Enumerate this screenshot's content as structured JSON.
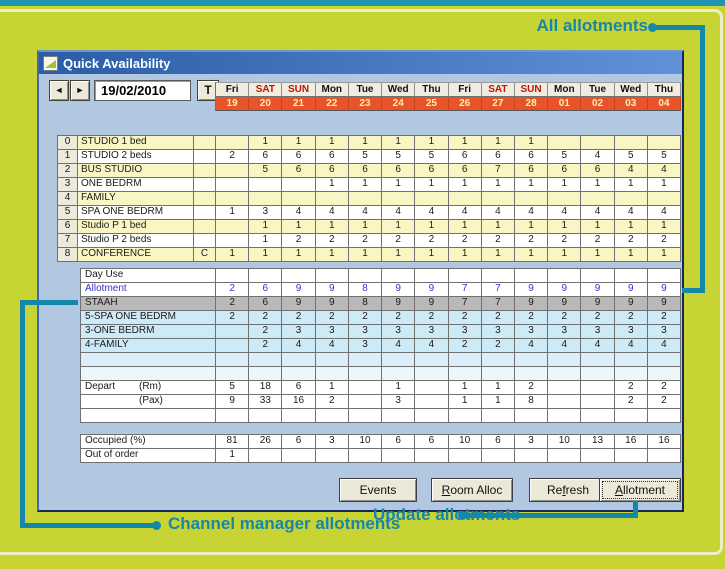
{
  "app": {
    "title": "Quick Availability"
  },
  "nav": {
    "prev_icon": "◄",
    "next_icon": "►",
    "date_value": "19/02/2010",
    "today_button": "T"
  },
  "columns": [
    {
      "day": "Fri",
      "date": "19",
      "weekend": false
    },
    {
      "day": "SAT",
      "date": "20",
      "weekend": true
    },
    {
      "day": "SUN",
      "date": "21",
      "weekend": true
    },
    {
      "day": "Mon",
      "date": "22",
      "weekend": false
    },
    {
      "day": "Tue",
      "date": "23",
      "weekend": false
    },
    {
      "day": "Wed",
      "date": "24",
      "weekend": false
    },
    {
      "day": "Thu",
      "date": "25",
      "weekend": false
    },
    {
      "day": "Fri",
      "date": "26",
      "weekend": false
    },
    {
      "day": "SAT",
      "date": "27",
      "weekend": true
    },
    {
      "day": "SUN",
      "date": "28",
      "weekend": true
    },
    {
      "day": "Mon",
      "date": "01",
      "weekend": false
    },
    {
      "day": "Tue",
      "date": "02",
      "weekend": false
    },
    {
      "day": "Wed",
      "date": "03",
      "weekend": false
    },
    {
      "day": "Thu",
      "date": "04",
      "weekend": false
    }
  ],
  "room_table": {
    "rows": [
      {
        "idx": "0",
        "name": "STUDIO 1 bed",
        "flag": "",
        "values": [
          "",
          "1",
          "1",
          "1",
          "1",
          "1",
          "1",
          "1",
          "1",
          "1",
          "",
          "",
          "",
          ""
        ]
      },
      {
        "idx": "1",
        "name": "STUDIO 2 beds",
        "flag": "",
        "values": [
          "2",
          "6",
          "6",
          "6",
          "5",
          "5",
          "5",
          "6",
          "6",
          "6",
          "5",
          "4",
          "5",
          "5"
        ]
      },
      {
        "idx": "2",
        "name": "BUS STUDIO",
        "flag": "",
        "values": [
          "",
          "5",
          "6",
          "6",
          "6",
          "6",
          "6",
          "6",
          "7",
          "6",
          "6",
          "6",
          "4",
          "4"
        ]
      },
      {
        "idx": "3",
        "name": "ONE BEDRM",
        "flag": "",
        "values": [
          "",
          "",
          "",
          "1",
          "1",
          "1",
          "1",
          "1",
          "1",
          "1",
          "1",
          "1",
          "1",
          "1"
        ]
      },
      {
        "idx": "4",
        "name": "FAMILY",
        "flag": "",
        "values": [
          "",
          "",
          "",
          "",
          "",
          "",
          "",
          "",
          "",
          "",
          "",
          "",
          "",
          ""
        ]
      },
      {
        "idx": "5",
        "name": "SPA ONE BEDRM",
        "flag": "",
        "values": [
          "1",
          "3",
          "4",
          "4",
          "4",
          "4",
          "4",
          "4",
          "4",
          "4",
          "4",
          "4",
          "4",
          "4"
        ]
      },
      {
        "idx": "6",
        "name": "Studio P 1 bed",
        "flag": "",
        "values": [
          "",
          "1",
          "1",
          "1",
          "1",
          "1",
          "1",
          "1",
          "1",
          "1",
          "1",
          "1",
          "1",
          "1"
        ]
      },
      {
        "idx": "7",
        "name": "Studio P 2 beds",
        "flag": "",
        "values": [
          "",
          "1",
          "2",
          "2",
          "2",
          "2",
          "2",
          "2",
          "2",
          "2",
          "2",
          "2",
          "2",
          "2"
        ]
      },
      {
        "idx": "8",
        "name": "CONFERENCE",
        "flag": "C",
        "values": [
          "1",
          "1",
          "1",
          "1",
          "1",
          "1",
          "1",
          "1",
          "1",
          "1",
          "1",
          "1",
          "1",
          "1"
        ]
      }
    ]
  },
  "allotment_table": {
    "rows": [
      {
        "label": "Day Use",
        "label2": "",
        "style": "white",
        "cls": "",
        "selectable": false,
        "values": [
          "",
          "",
          "",
          "",
          "",
          "",
          "",
          "",
          "",
          "",
          "",
          "",
          "",
          ""
        ]
      },
      {
        "label": "Allotment",
        "label2": "",
        "style": "white",
        "cls": "allot",
        "selectable": true,
        "values": [
          "2",
          "6",
          "9",
          "9",
          "8",
          "9",
          "9",
          "7",
          "7",
          "9",
          "9",
          "9",
          "9",
          "9"
        ]
      },
      {
        "label": "STAAH",
        "label2": "",
        "style": "gray",
        "cls": "",
        "selectable": true,
        "values": [
          "2",
          "6",
          "9",
          "9",
          "8",
          "9",
          "9",
          "7",
          "7",
          "9",
          "9",
          "9",
          "9",
          "9"
        ]
      },
      {
        "label": "5-SPA ONE BEDRM",
        "label2": "",
        "style": "blue",
        "cls": "",
        "selectable": true,
        "values": [
          "2",
          "2",
          "2",
          "2",
          "2",
          "2",
          "2",
          "2",
          "2",
          "2",
          "2",
          "2",
          "2",
          "2"
        ]
      },
      {
        "label": "3-ONE BEDRM",
        "label2": "",
        "style": "blue",
        "cls": "",
        "selectable": true,
        "values": [
          "",
          "2",
          "3",
          "3",
          "3",
          "3",
          "3",
          "3",
          "3",
          "3",
          "3",
          "3",
          "3",
          "3"
        ]
      },
      {
        "label": "4-FAMILY",
        "label2": "",
        "style": "blue",
        "cls": "",
        "selectable": true,
        "values": [
          "",
          "2",
          "4",
          "4",
          "3",
          "4",
          "4",
          "2",
          "2",
          "4",
          "4",
          "4",
          "4",
          "4"
        ]
      },
      {
        "label": "",
        "label2": "",
        "style": "fade1",
        "cls": "",
        "selectable": false,
        "values": [
          "",
          "",
          "",
          "",
          "",
          "",
          "",
          "",
          "",
          "",
          "",
          "",
          "",
          ""
        ]
      },
      {
        "label": "",
        "label2": "",
        "style": "fade2",
        "cls": "",
        "selectable": false,
        "values": [
          "",
          "",
          "",
          "",
          "",
          "",
          "",
          "",
          "",
          "",
          "",
          "",
          "",
          ""
        ]
      },
      {
        "label": "Depart",
        "label2": "(Rm)",
        "style": "white",
        "cls": "",
        "selectable": false,
        "values": [
          "5",
          "18",
          "6",
          "1",
          "",
          "1",
          "",
          "1",
          "1",
          "2",
          "",
          "",
          "2",
          "2"
        ]
      },
      {
        "label": "",
        "label2": "(Pax)",
        "style": "white",
        "cls": "",
        "selectable": false,
        "values": [
          "9",
          "33",
          "16",
          "2",
          "",
          "3",
          "",
          "1",
          "1",
          "8",
          "",
          "",
          "2",
          "2"
        ]
      },
      {
        "label": "",
        "label2": "",
        "style": "white",
        "cls": "",
        "selectable": false,
        "values": [
          "",
          "",
          "",
          "",
          "",
          "",
          "",
          "",
          "",
          "",
          "",
          "",
          "",
          ""
        ]
      }
    ]
  },
  "summary_table": {
    "rows": [
      {
        "label": "Occupied (%)",
        "values": [
          "81",
          "26",
          "6",
          "3",
          "10",
          "6",
          "6",
          "10",
          "6",
          "3",
          "10",
          "13",
          "16",
          "16"
        ]
      },
      {
        "label": "Out of order",
        "values": [
          "1",
          "",
          "",
          "",
          "",
          "",
          "",
          "",
          "",
          "",
          "",
          "",
          "",
          ""
        ]
      }
    ]
  },
  "buttons": [
    {
      "pre": "Events",
      "mn": "",
      "post": "",
      "focused": false
    },
    {
      "pre": "",
      "mn": "R",
      "post": "oom Alloc",
      "focused": false
    },
    {
      "pre": "Re",
      "mn": "f",
      "post": "resh",
      "focused": false
    },
    {
      "pre": "",
      "mn": "A",
      "post": "llotment",
      "focused": true
    }
  ],
  "annotations": {
    "all_allotments": "All allotments",
    "channel_manager": "Channel manager allotments",
    "update_allotments": "Update allotments"
  },
  "colors": {
    "background_green": "#c8d434",
    "accent_teal": "#1487aa",
    "date_row_orange": "#e8532a",
    "weekend_red": "#c01505",
    "allotment_blue": "#3434cf",
    "staah_row_gray": "#b9b9b9",
    "channel_row_blue": "#cdeaf7",
    "room_row_yellow": "#faf6c3"
  }
}
